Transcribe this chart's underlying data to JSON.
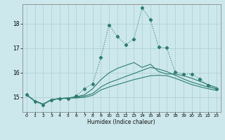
{
  "xlabel": "Humidex (Indice chaleur)",
  "bg_color": "#cde8ec",
  "grid_color": "#aacdd4",
  "line_color": "#2e7d72",
  "xlim": [
    -0.5,
    23.5
  ],
  "ylim": [
    14.4,
    18.8
  ],
  "yticks": [
    15,
    16,
    17,
    18
  ],
  "xticks": [
    0,
    1,
    2,
    3,
    4,
    5,
    6,
    7,
    8,
    9,
    10,
    11,
    12,
    13,
    14,
    15,
    16,
    17,
    18,
    19,
    20,
    21,
    22,
    23
  ],
  "series1_x": [
    0,
    1,
    2,
    3,
    4,
    5,
    6,
    7,
    8,
    9,
    10,
    11,
    12,
    13,
    14,
    15,
    16,
    17,
    18,
    19,
    20,
    21,
    22,
    23
  ],
  "series1_y": [
    15.1,
    14.85,
    14.72,
    14.9,
    14.95,
    14.97,
    14.97,
    15.0,
    15.08,
    15.3,
    15.42,
    15.52,
    15.62,
    15.72,
    15.8,
    15.88,
    15.9,
    15.88,
    15.78,
    15.65,
    15.52,
    15.43,
    15.35,
    15.28
  ],
  "series2_x": [
    0,
    1,
    2,
    3,
    4,
    5,
    6,
    7,
    8,
    9,
    10,
    11,
    12,
    13,
    14,
    15,
    16,
    17,
    18,
    19,
    20,
    21,
    22,
    23
  ],
  "series2_y": [
    15.1,
    14.85,
    14.72,
    14.9,
    14.95,
    14.97,
    15.0,
    15.05,
    15.15,
    15.42,
    15.6,
    15.72,
    15.85,
    15.97,
    16.1,
    16.22,
    16.15,
    16.05,
    15.9,
    15.75,
    15.62,
    15.52,
    15.42,
    15.35
  ],
  "series3_x": [
    0,
    1,
    2,
    3,
    4,
    5,
    6,
    7,
    8,
    9,
    10,
    11,
    12,
    13,
    14,
    15,
    16,
    17,
    18,
    19,
    20,
    21,
    22,
    23
  ],
  "series3_y": [
    15.1,
    14.85,
    14.72,
    14.9,
    14.95,
    14.97,
    15.02,
    15.1,
    15.35,
    15.72,
    16.0,
    16.18,
    16.3,
    16.42,
    16.22,
    16.35,
    16.05,
    15.95,
    15.95,
    15.88,
    15.78,
    15.65,
    15.52,
    15.4
  ],
  "series4_x": [
    0,
    1,
    2,
    3,
    4,
    5,
    6,
    7,
    8,
    9,
    10,
    11,
    12,
    13,
    14,
    15,
    16,
    17,
    18,
    19,
    20,
    21,
    22,
    23
  ],
  "series4_y": [
    15.12,
    14.82,
    14.7,
    14.88,
    14.93,
    14.95,
    15.05,
    15.35,
    15.55,
    16.62,
    17.95,
    17.48,
    17.15,
    17.38,
    18.65,
    18.18,
    17.05,
    17.02,
    16.03,
    15.95,
    15.95,
    15.75,
    15.48,
    15.35
  ]
}
